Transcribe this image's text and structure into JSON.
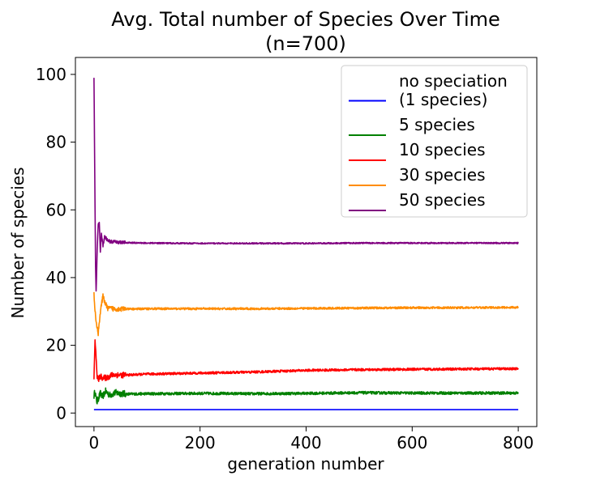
{
  "chart_data": {
    "type": "line",
    "title": "Avg. Total number of Species Over Time",
    "subtitle": "(n=700)",
    "xlabel": "generation number",
    "ylabel": "Number of species",
    "xlim": [
      -35,
      835
    ],
    "ylim": [
      -4,
      105
    ],
    "xticks": [
      0,
      200,
      400,
      600,
      800
    ],
    "yticks": [
      0,
      20,
      40,
      60,
      80,
      100
    ],
    "grid": false,
    "legend_position": "top-right",
    "series": [
      {
        "name": "no speciation\n(1 species)",
        "color": "#0000ff",
        "noise": 0,
        "points": [
          [
            0,
            1
          ],
          [
            800,
            1
          ]
        ]
      },
      {
        "name": "5 species",
        "color": "#008000",
        "noise": 0.4,
        "points": [
          [
            0,
            5
          ],
          [
            2,
            6.5
          ],
          [
            4,
            4.2
          ],
          [
            6,
            3.2
          ],
          [
            8,
            4.3
          ],
          [
            12,
            5.8
          ],
          [
            16,
            4.8
          ],
          [
            22,
            6.4
          ],
          [
            30,
            5.3
          ],
          [
            40,
            6.0
          ],
          [
            60,
            5.6
          ],
          [
            100,
            5.7
          ],
          [
            200,
            5.8
          ],
          [
            300,
            5.7
          ],
          [
            400,
            5.8
          ],
          [
            500,
            6.0
          ],
          [
            600,
            5.9
          ],
          [
            700,
            5.9
          ],
          [
            800,
            5.9
          ]
        ]
      },
      {
        "name": "10 species",
        "color": "#ff0000",
        "noise": 0.35,
        "points": [
          [
            0,
            10
          ],
          [
            2,
            22
          ],
          [
            4,
            16
          ],
          [
            6,
            11
          ],
          [
            8,
            9.8
          ],
          [
            12,
            10.8
          ],
          [
            18,
            10.3
          ],
          [
            25,
            10.5
          ],
          [
            35,
            11.3
          ],
          [
            60,
            11.2
          ],
          [
            100,
            11.5
          ],
          [
            200,
            11.8
          ],
          [
            300,
            12.1
          ],
          [
            400,
            12.6
          ],
          [
            500,
            12.8
          ],
          [
            600,
            12.9
          ],
          [
            700,
            13.0
          ],
          [
            800,
            13.1
          ]
        ]
      },
      {
        "name": "30 species",
        "color": "#ff8c00",
        "noise": 0.3,
        "points": [
          [
            0,
            35
          ],
          [
            2,
            30
          ],
          [
            4,
            27.5
          ],
          [
            6,
            25
          ],
          [
            8,
            23.5
          ],
          [
            10,
            27
          ],
          [
            13,
            31
          ],
          [
            17,
            34.5
          ],
          [
            20,
            33
          ],
          [
            25,
            31
          ],
          [
            35,
            30.8
          ],
          [
            60,
            30.7
          ],
          [
            100,
            30.8
          ],
          [
            200,
            30.8
          ],
          [
            300,
            30.8
          ],
          [
            400,
            30.9
          ],
          [
            500,
            31.0
          ],
          [
            600,
            31.1
          ],
          [
            700,
            31.1
          ],
          [
            800,
            31.2
          ]
        ]
      },
      {
        "name": "50 species",
        "color": "#800080",
        "noise": 0.2,
        "points": [
          [
            0,
            99.5
          ],
          [
            1,
            80
          ],
          [
            2,
            61
          ],
          [
            3,
            43
          ],
          [
            4,
            36
          ],
          [
            5,
            41
          ],
          [
            6,
            48
          ],
          [
            8,
            55.5
          ],
          [
            10,
            56
          ],
          [
            12,
            48
          ],
          [
            14,
            53
          ],
          [
            17,
            49.5
          ],
          [
            20,
            52
          ],
          [
            25,
            51.2
          ],
          [
            30,
            50.6
          ],
          [
            40,
            50.5
          ],
          [
            60,
            50.3
          ],
          [
            100,
            50.2
          ],
          [
            200,
            50.1
          ],
          [
            300,
            50.1
          ],
          [
            400,
            50.1
          ],
          [
            500,
            50.2
          ],
          [
            600,
            50.2
          ],
          [
            700,
            50.2
          ],
          [
            800,
            50.2
          ]
        ]
      }
    ]
  }
}
